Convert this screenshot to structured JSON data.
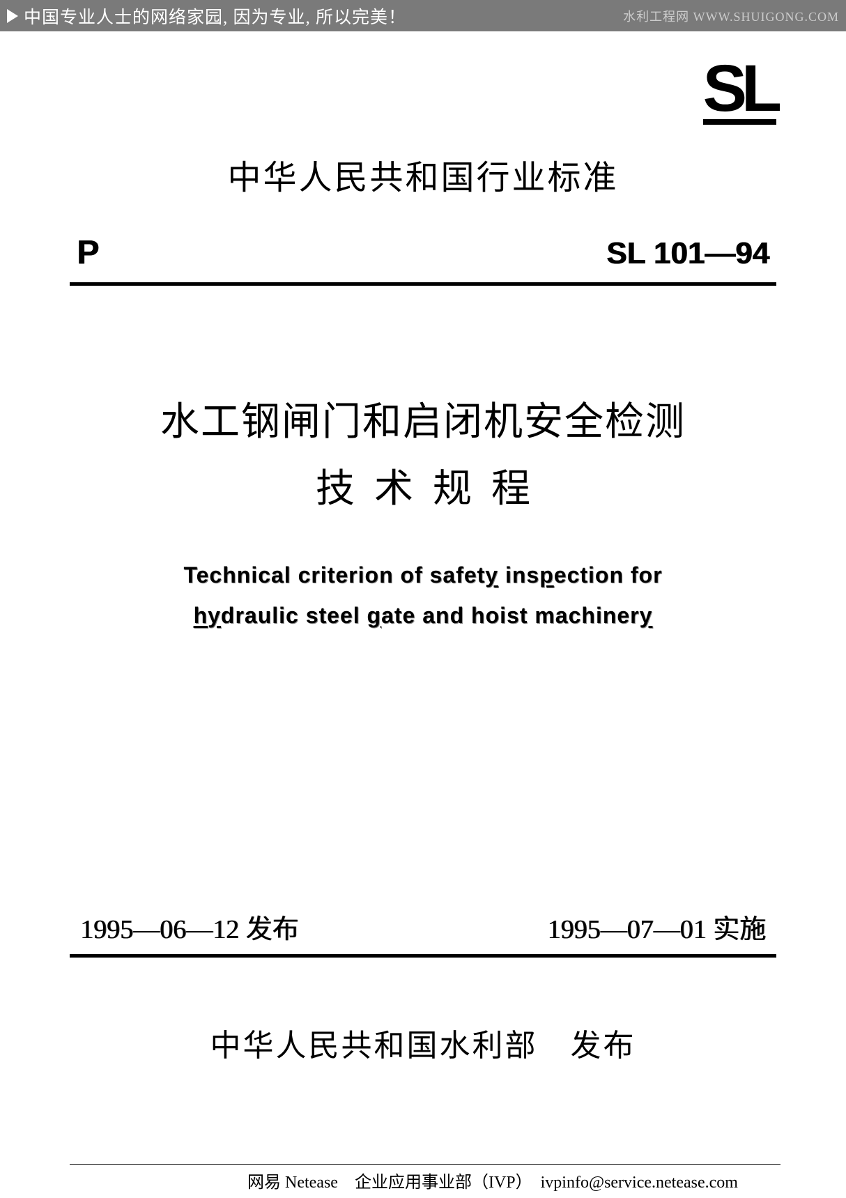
{
  "banner": {
    "left_text": "中国专业人士的网络家园, 因为专业, 所以完美！",
    "right_text": "水利工程网  WWW.SHUIGONG.COM"
  },
  "logo": {
    "text": "SL"
  },
  "header": {
    "title": "中华人民共和国行业标准",
    "code_left": "P",
    "code_right": "SL   101—94"
  },
  "main_title": {
    "line1": "水工钢闸门和启闭机安全检测",
    "line2": "技术规程"
  },
  "english_title": {
    "line1_part1": "Technical criterion of safet",
    "line1_part2": "y",
    "line1_part3": " ins",
    "line1_part4": "p",
    "line1_part5": "ection for",
    "line2_part1": "h",
    "line2_part2": "y",
    "line2_part3": "draulic steel ",
    "line2_part4": "g",
    "line2_part5": "ate and hoist machiner",
    "line2_part6": "y"
  },
  "dates": {
    "publish": "1995—06—12 发布",
    "implement": "1995—07—01 实施"
  },
  "publisher": "中华人民共和国水利部　发布",
  "footer": "网易  Netease　企业应用事业部（IVP）　ivpinfo@service.netease.com",
  "colors": {
    "banner_bg": "#7a7a7a",
    "text": "#000000",
    "banner_text": "#ffffff",
    "banner_right_text": "#cccccc"
  }
}
